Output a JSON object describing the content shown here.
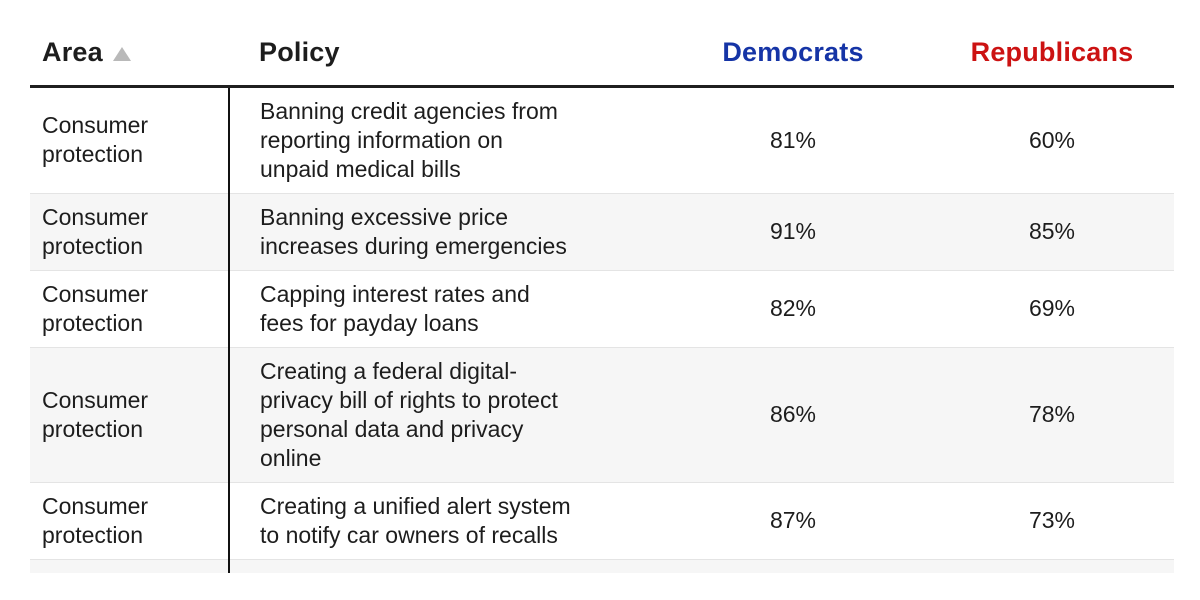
{
  "colors": {
    "democrats_header": "#1534a6",
    "republicans_header": "#cc1212",
    "sort_icon": "#b9b9b9",
    "row_stripe": "#f6f6f6",
    "header_rule": "#1f1f1f",
    "column_divider": "#111111",
    "body_text": "#1d1d1d"
  },
  "icons": {
    "sort_ascending": "triangle-up"
  },
  "table": {
    "headers": {
      "area": "Area",
      "policy": "Policy",
      "democrats": "Democrats",
      "republicans": "Republicans"
    },
    "sort": {
      "column": "Area",
      "direction": "ascending"
    },
    "rows": [
      {
        "area": "Consumer protection",
        "policy": "Banning credit agencies from\nreporting information on\nunpaid medical bills",
        "democrats": "81%",
        "republicans": "60%"
      },
      {
        "area": "Consumer protection",
        "policy": "Banning excessive price\nincreases during emergencies",
        "democrats": "91%",
        "republicans": "85%"
      },
      {
        "area": "Consumer protection",
        "policy": "Capping interest rates and\nfees for payday loans",
        "democrats": "82%",
        "republicans": "69%"
      },
      {
        "area": "Consumer protection",
        "policy": "Creating a federal digital-\nprivacy bill of rights to protect\npersonal data and privacy\nonline",
        "democrats": "86%",
        "republicans": "78%"
      },
      {
        "area": "Consumer protection",
        "policy": "Creating a unified alert system\nto notify car owners of recalls",
        "democrats": "87%",
        "republicans": "73%"
      }
    ]
  }
}
